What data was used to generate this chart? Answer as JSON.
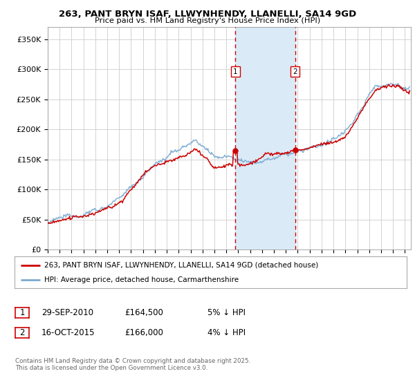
{
  "title": "263, PANT BRYN ISAF, LLWYNHENDY, LLANELLI, SA14 9GD",
  "subtitle": "Price paid vs. HM Land Registry's House Price Index (HPI)",
  "ylabel_ticks": [
    "£0",
    "£50K",
    "£100K",
    "£150K",
    "£200K",
    "£250K",
    "£300K",
    "£350K"
  ],
  "ytick_vals": [
    0,
    50000,
    100000,
    150000,
    200000,
    250000,
    300000,
    350000
  ],
  "ylim": [
    0,
    370000
  ],
  "xlim_start": 1995.0,
  "xlim_end": 2025.5,
  "marker1_x": 2010.75,
  "marker2_x": 2015.79,
  "marker1_price": 164500,
  "marker2_price": 166000,
  "marker1_label": "1",
  "marker2_label": "2",
  "shade_color": "#daeaf7",
  "dashed_color": "#cc0000",
  "legend1_label": "263, PANT BRYN ISAF, LLWYNHENDY, LLANELLI, SA14 9GD (detached house)",
  "legend2_label": "HPI: Average price, detached house, Carmarthenshire",
  "legend1_color": "#cc0000",
  "legend2_color": "#7aaad0",
  "table_row1": [
    "1",
    "29-SEP-2010",
    "£164,500",
    "5% ↓ HPI"
  ],
  "table_row2": [
    "2",
    "16-OCT-2015",
    "£166,000",
    "4% ↓ HPI"
  ],
  "footer": "Contains HM Land Registry data © Crown copyright and database right 2025.\nThis data is licensed under the Open Government Licence v3.0.",
  "hpi_line_color": "#7aaad0",
  "price_line_color": "#cc0000",
  "bg_color": "#ffffff",
  "plot_bg_color": "#ffffff",
  "grid_color": "#cccccc"
}
